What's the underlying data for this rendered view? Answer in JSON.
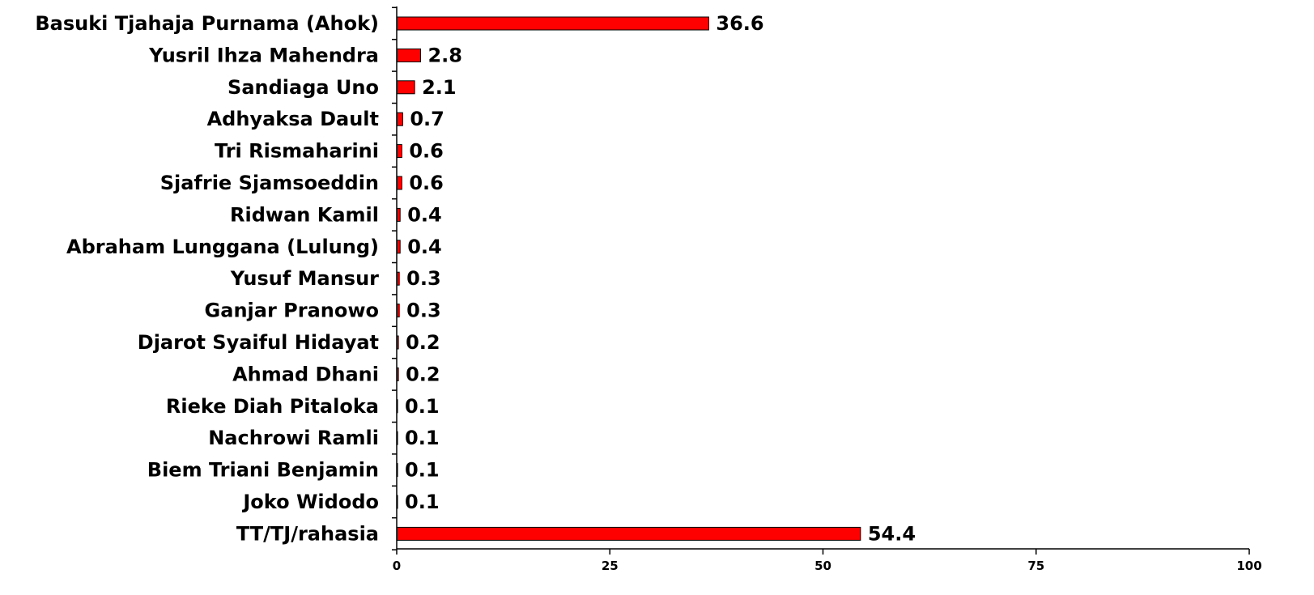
{
  "chart_data": {
    "type": "bar",
    "orientation": "horizontal",
    "title": "",
    "xlabel": "",
    "ylabel": "",
    "xlim": [
      0,
      100
    ],
    "x_ticks": [
      0,
      25,
      50,
      75,
      100
    ],
    "grid": false,
    "legend": "none",
    "bar_color": "#ff0000",
    "categories": [
      "Basuki Tjahaja Purnama (Ahok)",
      "Yusril Ihza Mahendra",
      "Sandiaga Uno",
      "Adhyaksa Dault",
      "Tri Rismaharini",
      "Sjafrie Sjamsoeddin",
      "Ridwan Kamil",
      "Abraham Lunggana (Lulung)",
      "Yusuf Mansur",
      "Ganjar Pranowo",
      "Djarot Syaiful Hidayat",
      "Ahmad Dhani",
      "Rieke Diah Pitaloka",
      "Nachrowi Ramli",
      "Biem Triani Benjamin",
      "Joko Widodo",
      "TT/TJ/rahasia"
    ],
    "values": [
      36.6,
      2.8,
      2.1,
      0.7,
      0.6,
      0.6,
      0.4,
      0.4,
      0.3,
      0.3,
      0.2,
      0.2,
      0.1,
      0.1,
      0.1,
      0.1,
      54.4
    ],
    "value_labels": [
      "36.6",
      "2.8",
      "2.1",
      "0.7",
      "0.6",
      "0.6",
      "0.4",
      "0.4",
      "0.3",
      "0.3",
      "0.2",
      "0.2",
      "0.1",
      "0.1",
      "0.1",
      "0.1",
      "54.4"
    ]
  }
}
